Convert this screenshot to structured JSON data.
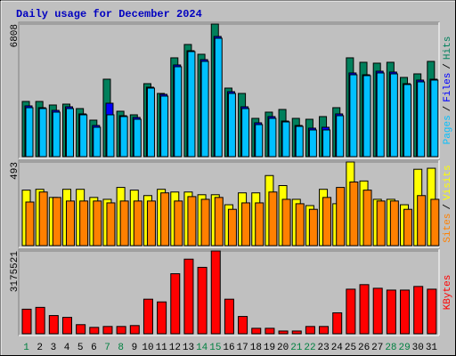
{
  "chart_data": {
    "type": "bar",
    "title": "Daily usage for December 2024",
    "categories": [
      "1",
      "2",
      "3",
      "4",
      "5",
      "6",
      "7",
      "8",
      "9",
      "10",
      "11",
      "12",
      "13",
      "14",
      "15",
      "16",
      "17",
      "18",
      "19",
      "20",
      "21",
      "22",
      "23",
      "24",
      "25",
      "26",
      "27",
      "28",
      "29",
      "30",
      "31"
    ],
    "category_colors": [
      "#008040",
      "#000000",
      "#000000",
      "#000000",
      "#000000",
      "#000000",
      "#008040",
      "#008040",
      "#000000",
      "#000000",
      "#000000",
      "#000000",
      "#000000",
      "#008040",
      "#008040",
      "#000000",
      "#000000",
      "#000000",
      "#000000",
      "#000000",
      "#008040",
      "#008040",
      "#000000",
      "#000000",
      "#000000",
      "#000000",
      "#000000",
      "#008040",
      "#008040",
      "#000000",
      "#000000"
    ],
    "legend_separator": "/",
    "grid": true,
    "panels": [
      {
        "ylim": [
          0,
          6808
        ],
        "yticks": [
          6808
        ],
        "series": [
          {
            "name": "Hits",
            "color": "#00805c",
            "values": [
              2833,
              2833,
              2651,
              2696,
              2468,
              1874,
              3976,
              2331,
              2148,
              3747,
              3245,
              5073,
              5758,
              5256,
              6808,
              3519,
              3245,
              1965,
              2285,
              2422,
              1965,
              1919,
              2057,
              2514,
              5073,
              4844,
              4799,
              4844,
              4067,
              4250,
              4890
            ]
          },
          {
            "name": "Files",
            "color": "#0000ff",
            "values": [
              2605,
              2514,
              2376,
              2559,
              2194,
              1600,
              2742,
              2102,
              2011,
              3565,
              3199,
              4707,
              5438,
              4981,
              6170,
              3336,
              2559,
              1737,
              2057,
              1828,
              1600,
              1462,
              1508,
              2194,
              4296,
              4204,
              4387,
              4342,
              3747,
              3930,
              3976
            ]
          },
          {
            "name": "Pages",
            "color": "#00c0ff",
            "values": [
              2514,
              2468,
              2285,
              2468,
              2148,
              1508,
              2148,
              2057,
              1919,
              3519,
              3108,
              4616,
              5393,
              4890,
              6078,
              3245,
              2468,
              1645,
              1965,
              1782,
              1554,
              1371,
              1371,
              2102,
              4204,
              4159,
              4296,
              4250,
              3702,
              3839,
              3930
            ]
          }
        ]
      },
      {
        "ylim": [
          0,
          493
        ],
        "yticks": [
          493
        ],
        "series": [
          {
            "name": "Visits",
            "color": "#ffff00",
            "values": [
              327,
              332,
              284,
              332,
              332,
              284,
              273,
              343,
              327,
              295,
              332,
              316,
              316,
              300,
              300,
              241,
              311,
              311,
              413,
              354,
              273,
              236,
              332,
              247,
              493,
              381,
              273,
              273,
              241,
              450,
              456
            ]
          },
          {
            "name": "Sites",
            "color": "#ff8000",
            "values": [
              257,
              316,
              284,
              263,
              263,
              263,
              252,
              263,
              263,
              263,
              311,
              263,
              289,
              273,
              284,
              214,
              252,
              252,
              316,
              273,
              247,
              214,
              284,
              343,
              375,
              327,
              263,
              263,
              214,
              295,
              273
            ]
          }
        ]
      },
      {
        "ylim": [
          0,
          3175521
        ],
        "yticks": [
          3175521
        ],
        "series": [
          {
            "name": "KBytes",
            "color": "#ff0000",
            "values": [
              942192,
              1011984,
              697920,
              628128,
              348960,
              244272,
              279168,
              279168,
              314064,
              1326048,
              1221360,
              2303136,
              2861472,
              2547408,
              3175521,
              1326048,
              663024,
              209376,
              209376,
              104688,
              104688,
              279168,
              279168,
              802608,
              1709904,
              1884384,
              1744800,
              1675008,
              1675008,
              1814592,
              1709904
            ]
          }
        ]
      }
    ]
  }
}
